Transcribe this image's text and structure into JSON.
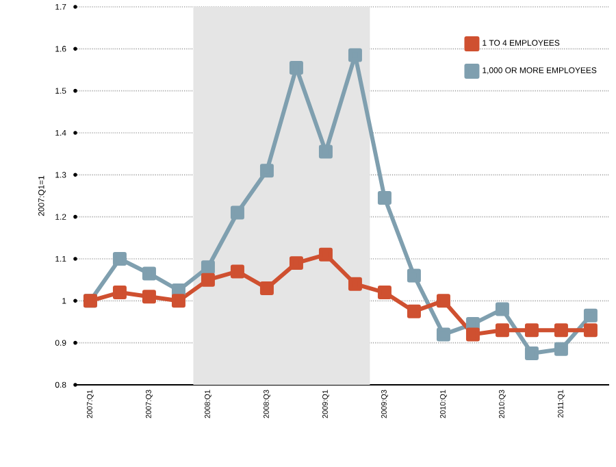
{
  "chart_data": {
    "type": "line",
    "ylabel": "2007:Q1=1",
    "categories": [
      "2007:Q1",
      null,
      "2007:Q3",
      null,
      "2008:Q1",
      null,
      "2008:Q3",
      null,
      "2009:Q1",
      null,
      "2009:Q3",
      null,
      "2010:Q1",
      null,
      "2010:Q3",
      null,
      "2011:Q1",
      null
    ],
    "series": [
      {
        "name": "1 TO 4 EMPLOYEES",
        "color": "#cf5030",
        "values": [
          1.0,
          1.02,
          1.01,
          1.0,
          1.05,
          1.07,
          1.03,
          1.09,
          1.11,
          1.04,
          1.02,
          0.975,
          1.0,
          0.92,
          0.93,
          0.93,
          0.93,
          0.93
        ]
      },
      {
        "name": "1,000 OR MORE EMPLOYEES",
        "color": "#7f9faf",
        "values": [
          1.0,
          1.1,
          1.065,
          1.025,
          1.08,
          1.21,
          1.31,
          1.555,
          1.355,
          1.585,
          1.245,
          1.06,
          0.92,
          0.945,
          0.98,
          0.875,
          0.885,
          0.965
        ]
      }
    ],
    "ylim": [
      0.8,
      1.7
    ],
    "yticks": [
      0.8,
      0.9,
      {
        "value": 1.0,
        "label": "1"
      },
      1.1,
      1.2,
      1.3,
      1.4,
      1.5,
      1.6,
      1.7
    ],
    "grid": "y",
    "legend": "top right",
    "marker": "square",
    "line_style": "solid"
  }
}
